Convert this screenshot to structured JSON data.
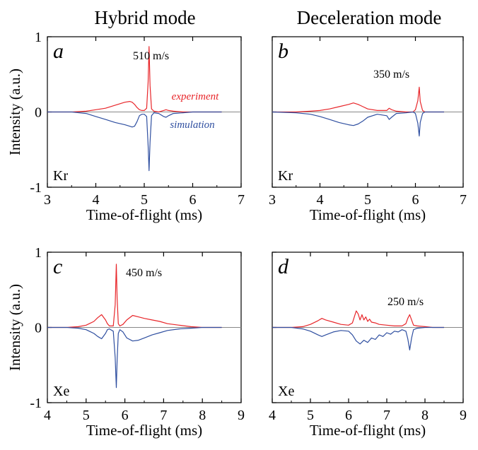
{
  "column_titles": [
    "Hybrid mode",
    "Deceleration mode"
  ],
  "colors": {
    "experiment": "#e8262a",
    "simulation": "#2f4fa0",
    "axis": "#000000",
    "zero_line": "#888888"
  },
  "chart_data": [
    {
      "id": "a",
      "type": "line",
      "panel_label": "a",
      "annotation": "510 m/s",
      "species": "Kr",
      "xlabel": "Time-of-flight (ms)",
      "ylabel": "Intensity (a.u.)",
      "xlim": [
        3,
        7
      ],
      "ylim": [
        -1,
        1
      ],
      "xticks": [
        "3",
        "4",
        "5",
        "6",
        "7"
      ],
      "yticks": [
        "1",
        "0",
        "-1"
      ],
      "series_labels": {
        "experiment": "experiment",
        "simulation": "simulation"
      },
      "series": [
        {
          "key": "experiment",
          "x": [
            3.0,
            3.5,
            3.8,
            4.0,
            4.2,
            4.4,
            4.6,
            4.7,
            4.75,
            4.8,
            4.85,
            4.9,
            4.95,
            5.0,
            5.05,
            5.08,
            5.1,
            5.12,
            5.15,
            5.2,
            5.3,
            5.4,
            5.45,
            5.5,
            5.6,
            5.8,
            6.0,
            6.3,
            6.6
          ],
          "y": [
            0.0,
            0.0,
            0.01,
            0.03,
            0.05,
            0.09,
            0.13,
            0.14,
            0.13,
            0.1,
            0.06,
            0.03,
            0.02,
            0.02,
            0.05,
            0.4,
            0.87,
            0.35,
            0.04,
            0.01,
            0.0,
            0.02,
            0.03,
            0.02,
            0.01,
            0.0,
            0.0,
            0.0,
            0.0
          ]
        },
        {
          "key": "simulation",
          "x": [
            3.0,
            3.5,
            3.8,
            4.0,
            4.2,
            4.4,
            4.6,
            4.7,
            4.75,
            4.8,
            4.85,
            4.9,
            4.95,
            5.0,
            5.05,
            5.08,
            5.1,
            5.12,
            5.15,
            5.2,
            5.3,
            5.4,
            5.45,
            5.5,
            5.6,
            5.8,
            6.0,
            6.3,
            6.6
          ],
          "y": [
            0.0,
            0.0,
            -0.02,
            -0.06,
            -0.1,
            -0.14,
            -0.17,
            -0.19,
            -0.2,
            -0.19,
            -0.13,
            -0.05,
            -0.03,
            -0.03,
            -0.06,
            -0.45,
            -0.78,
            -0.4,
            -0.05,
            -0.01,
            -0.02,
            -0.06,
            -0.07,
            -0.05,
            -0.02,
            -0.01,
            0.0,
            0.0,
            0.0
          ]
        }
      ]
    },
    {
      "id": "b",
      "type": "line",
      "panel_label": "b",
      "annotation": "350 m/s",
      "species": "Kr",
      "xlabel": "Time-of-flight (ms)",
      "ylabel": "",
      "xlim": [
        3,
        7
      ],
      "ylim": [
        -1,
        1
      ],
      "xticks": [
        "3",
        "4",
        "5",
        "6",
        "7"
      ],
      "yticks": [],
      "series_labels": {},
      "series": [
        {
          "key": "experiment",
          "x": [
            3.0,
            3.5,
            3.8,
            4.0,
            4.2,
            4.4,
            4.6,
            4.7,
            4.8,
            4.9,
            5.0,
            5.2,
            5.4,
            5.45,
            5.5,
            5.6,
            5.8,
            5.95,
            6.0,
            6.05,
            6.08,
            6.1,
            6.15,
            6.2,
            6.4,
            6.6
          ],
          "y": [
            0.0,
            0.0,
            0.01,
            0.02,
            0.04,
            0.07,
            0.1,
            0.12,
            0.1,
            0.07,
            0.04,
            0.02,
            0.02,
            0.05,
            0.03,
            0.01,
            0.0,
            0.0,
            0.03,
            0.15,
            0.33,
            0.14,
            0.02,
            0.0,
            0.0,
            0.0
          ]
        },
        {
          "key": "simulation",
          "x": [
            3.0,
            3.5,
            3.8,
            4.0,
            4.2,
            4.4,
            4.6,
            4.7,
            4.8,
            4.9,
            5.0,
            5.2,
            5.4,
            5.45,
            5.5,
            5.6,
            5.8,
            5.95,
            6.0,
            6.05,
            6.08,
            6.1,
            6.15,
            6.2,
            6.4,
            6.6
          ],
          "y": [
            0.0,
            -0.01,
            -0.03,
            -0.06,
            -0.1,
            -0.14,
            -0.17,
            -0.18,
            -0.16,
            -0.12,
            -0.07,
            -0.03,
            -0.05,
            -0.1,
            -0.07,
            -0.02,
            -0.01,
            0.0,
            -0.02,
            -0.15,
            -0.32,
            -0.14,
            -0.02,
            0.0,
            0.0,
            0.0
          ]
        }
      ]
    },
    {
      "id": "c",
      "type": "line",
      "panel_label": "c",
      "annotation": "450 m/s",
      "species": "Xe",
      "xlabel": "Time-of-flight (ms)",
      "ylabel": "Intensity (a.u.)",
      "xlim": [
        4,
        9
      ],
      "ylim": [
        -1,
        1
      ],
      "xticks": [
        "4",
        "5",
        "6",
        "7",
        "8",
        "9"
      ],
      "yticks": [
        "1",
        "0",
        "-1"
      ],
      "series_labels": {},
      "series": [
        {
          "key": "experiment",
          "x": [
            4.0,
            4.5,
            4.8,
            5.0,
            5.2,
            5.3,
            5.4,
            5.5,
            5.55,
            5.6,
            5.7,
            5.75,
            5.78,
            5.8,
            5.83,
            5.87,
            5.95,
            6.05,
            6.2,
            6.35,
            6.5,
            6.7,
            6.9,
            7.1,
            7.4,
            7.7,
            8.0,
            8.5
          ],
          "y": [
            0.0,
            0.0,
            0.01,
            0.03,
            0.08,
            0.13,
            0.17,
            0.1,
            0.05,
            0.02,
            0.02,
            0.3,
            0.84,
            0.4,
            0.05,
            0.02,
            0.04,
            0.1,
            0.16,
            0.14,
            0.12,
            0.1,
            0.08,
            0.05,
            0.03,
            0.01,
            0.0,
            0.0
          ]
        },
        {
          "key": "simulation",
          "x": [
            4.0,
            4.5,
            4.8,
            5.0,
            5.2,
            5.3,
            5.4,
            5.5,
            5.55,
            5.6,
            5.7,
            5.75,
            5.78,
            5.8,
            5.83,
            5.87,
            5.95,
            6.05,
            6.2,
            6.35,
            6.5,
            6.7,
            6.9,
            7.1,
            7.4,
            7.7,
            8.0,
            8.5
          ],
          "y": [
            0.0,
            0.0,
            -0.01,
            -0.03,
            -0.08,
            -0.12,
            -0.15,
            -0.08,
            -0.03,
            -0.02,
            -0.05,
            -0.4,
            -0.8,
            -0.45,
            -0.08,
            -0.03,
            -0.06,
            -0.14,
            -0.18,
            -0.17,
            -0.14,
            -0.1,
            -0.07,
            -0.04,
            -0.02,
            -0.01,
            0.0,
            0.0
          ]
        }
      ]
    },
    {
      "id": "d",
      "type": "line",
      "panel_label": "d",
      "annotation": "250 m/s",
      "species": "Xe",
      "xlabel": "Time-of-flight (ms)",
      "ylabel": "",
      "xlim": [
        4,
        9
      ],
      "ylim": [
        -1,
        1
      ],
      "xticks": [
        "4",
        "5",
        "6",
        "7",
        "8",
        "9"
      ],
      "yticks": [],
      "series_labels": {},
      "series": [
        {
          "key": "experiment",
          "x": [
            4.0,
            4.5,
            4.8,
            5.0,
            5.2,
            5.3,
            5.4,
            5.6,
            5.8,
            6.0,
            6.1,
            6.2,
            6.25,
            6.3,
            6.35,
            6.4,
            6.45,
            6.5,
            6.55,
            6.6,
            6.7,
            6.8,
            7.0,
            7.2,
            7.4,
            7.5,
            7.55,
            7.6,
            7.65,
            7.7,
            7.8,
            8.0,
            8.2,
            8.5
          ],
          "y": [
            0.0,
            0.0,
            0.01,
            0.04,
            0.09,
            0.12,
            0.1,
            0.07,
            0.04,
            0.03,
            0.06,
            0.22,
            0.18,
            0.1,
            0.17,
            0.1,
            0.14,
            0.08,
            0.11,
            0.07,
            0.06,
            0.04,
            0.03,
            0.02,
            0.02,
            0.05,
            0.12,
            0.17,
            0.1,
            0.03,
            0.02,
            0.01,
            0.0,
            0.0
          ]
        },
        {
          "key": "simulation",
          "x": [
            4.0,
            4.5,
            4.8,
            5.0,
            5.2,
            5.3,
            5.4,
            5.6,
            5.8,
            6.0,
            6.1,
            6.2,
            6.3,
            6.4,
            6.5,
            6.6,
            6.7,
            6.8,
            6.9,
            7.0,
            7.1,
            7.2,
            7.3,
            7.4,
            7.5,
            7.55,
            7.6,
            7.65,
            7.7,
            7.8,
            8.0,
            8.2,
            8.5
          ],
          "y": [
            0.0,
            0.0,
            -0.02,
            -0.05,
            -0.1,
            -0.12,
            -0.1,
            -0.06,
            -0.04,
            -0.05,
            -0.1,
            -0.18,
            -0.22,
            -0.17,
            -0.2,
            -0.14,
            -0.16,
            -0.1,
            -0.12,
            -0.07,
            -0.09,
            -0.05,
            -0.06,
            -0.03,
            -0.05,
            -0.15,
            -0.3,
            -0.14,
            -0.03,
            -0.01,
            0.0,
            0.0,
            0.0
          ]
        }
      ]
    }
  ]
}
